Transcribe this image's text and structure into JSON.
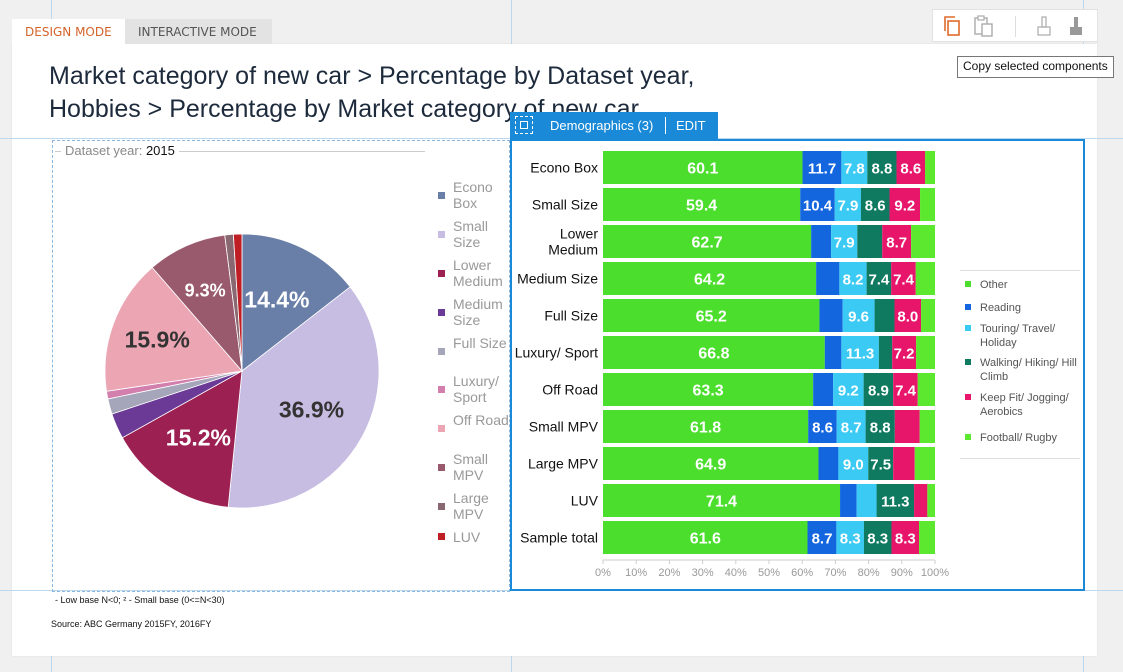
{
  "tabs": {
    "design": "DESIGN MODE",
    "interactive": "INTERACTIVE MODE"
  },
  "toolbar": {
    "icons": [
      "copy-icon",
      "paste-icon",
      "format-painter-icon",
      "brush-icon"
    ],
    "tooltip": "Copy selected components"
  },
  "title": {
    "line1": "Market category of new car > Percentage by Dataset year,",
    "line2": "Hobbies > Percentage by Market category of new car"
  },
  "pie": {
    "filter_label": "Dataset year:",
    "filter_value": "2015",
    "legend": [
      {
        "label": "Econo Box",
        "color": "#6a7fa8"
      },
      {
        "label": "Small Size",
        "color": "#c7bde2"
      },
      {
        "label": "Lower Medium",
        "color": "#9c2052"
      },
      {
        "label": "Medium Size",
        "color": "#6a3a96"
      },
      {
        "label": "Full Size",
        "color": "#a6a6ba"
      },
      {
        "label": "Luxury/ Sport",
        "color": "#d27fae"
      },
      {
        "label": "Off Road",
        "color": "#eba5b3"
      },
      {
        "label": "Small MPV",
        "color": "#9a5a6e"
      },
      {
        "label": "Large MPV",
        "color": "#8a6872"
      },
      {
        "label": "LUV",
        "color": "#be1e24"
      }
    ]
  },
  "bar": {
    "tag_label": "Demographics (3)",
    "edit_label": "EDIT",
    "legend": [
      {
        "label": "Other",
        "color": "#4bde2c"
      },
      {
        "label": "Reading",
        "color": "#1466df"
      },
      {
        "label": "Touring/ Travel/ Holiday",
        "color": "#3bcaf3"
      },
      {
        "label": "Walking/ Hiking/ Hill Climb",
        "color": "#0f7a60"
      },
      {
        "label": "Keep Fit/ Jogging/ Aerobics",
        "color": "#e7166b"
      },
      {
        "label": "Football/ Rugby",
        "color": "#5ce82e"
      }
    ]
  },
  "footnote": "- Low base N<0;   ² - Small base (0<=N<30)",
  "source": "Source: ABC Germany 2015FY, 2016FY",
  "chart_data": [
    {
      "type": "pie",
      "title": "",
      "categories": [
        "Econo Box",
        "Small Size",
        "Lower Medium",
        "Medium Size",
        "Full Size",
        "Luxury/ Sport",
        "Off Road",
        "Small MPV",
        "Large MPV",
        "LUV"
      ],
      "values": [
        14.4,
        36.9,
        15.2,
        3.0,
        1.8,
        0.9,
        15.9,
        9.3,
        1.0,
        1.0
      ],
      "data_labels": [
        "14.4%",
        "36.9%",
        "15.2%",
        "",
        "",
        "",
        "15.9%",
        "9.3%",
        "",
        ""
      ],
      "legend_position": "right"
    },
    {
      "type": "bar",
      "orientation": "horizontal",
      "stacked": true,
      "categories": [
        "Econo Box",
        "Small Size",
        "Lower Medium",
        "Medium Size",
        "Full Size",
        "Luxury/ Sport",
        "Off Road",
        "Small MPV",
        "Large MPV",
        "LUV",
        "Sample total"
      ],
      "series": [
        {
          "name": "Other",
          "values": [
            60.1,
            59.4,
            62.7,
            64.2,
            65.2,
            66.8,
            63.3,
            61.8,
            64.9,
            71.4,
            61.6
          ]
        },
        {
          "name": "Reading",
          "values": [
            11.7,
            10.4,
            6.0,
            7.0,
            7.0,
            5.0,
            6.0,
            8.6,
            6.0,
            5.0,
            8.7
          ]
        },
        {
          "name": "Touring/ Travel/ Holiday",
          "values": [
            7.8,
            7.9,
            7.9,
            8.2,
            9.6,
            11.3,
            9.2,
            8.7,
            9.0,
            6.0,
            8.3
          ]
        },
        {
          "name": "Walking/ Hiking/ Hill Climb",
          "values": [
            8.8,
            8.6,
            7.5,
            7.4,
            6.0,
            4.0,
            8.9,
            8.8,
            7.5,
            11.3,
            8.3
          ]
        },
        {
          "name": "Keep Fit/ Jogging/ Aerobics",
          "values": [
            8.6,
            9.2,
            8.7,
            7.4,
            8.0,
            7.2,
            7.4,
            7.5,
            6.5,
            4.0,
            8.3
          ]
        },
        {
          "name": "Football/ Rugby",
          "values": [
            3.0,
            4.5,
            7.2,
            5.8,
            4.2,
            5.7,
            5.2,
            4.6,
            6.1,
            2.3,
            4.8
          ]
        }
      ],
      "data_labels": [
        [
          "60.1",
          "11.7",
          "7.8",
          "8.8",
          "8.6",
          ""
        ],
        [
          "59.4",
          "10.4",
          "7.9",
          "8.6",
          "9.2",
          ""
        ],
        [
          "62.7",
          "",
          "7.9",
          "",
          "8.7",
          ""
        ],
        [
          "64.2",
          "",
          "8.2",
          "7.4",
          "7.4",
          ""
        ],
        [
          "65.2",
          "",
          "9.6",
          "",
          "8.0",
          ""
        ],
        [
          "66.8",
          "",
          "11.3",
          "",
          "7.2",
          ""
        ],
        [
          "63.3",
          "",
          "9.2",
          "8.9",
          "7.4",
          ""
        ],
        [
          "61.8",
          "8.6",
          "8.7",
          "8.8",
          "",
          ""
        ],
        [
          "64.9",
          "",
          "9.0",
          "7.5",
          "",
          ""
        ],
        [
          "71.4",
          "",
          "",
          "11.3",
          "",
          ""
        ],
        [
          "61.6",
          "8.7",
          "8.3",
          "8.3",
          "8.3",
          ""
        ]
      ],
      "xlim": [
        0,
        100
      ],
      "xticks": [
        "0%",
        "10%",
        "20%",
        "30%",
        "40%",
        "50%",
        "60%",
        "70%",
        "80%",
        "90%",
        "100%"
      ],
      "legend_position": "right"
    }
  ]
}
